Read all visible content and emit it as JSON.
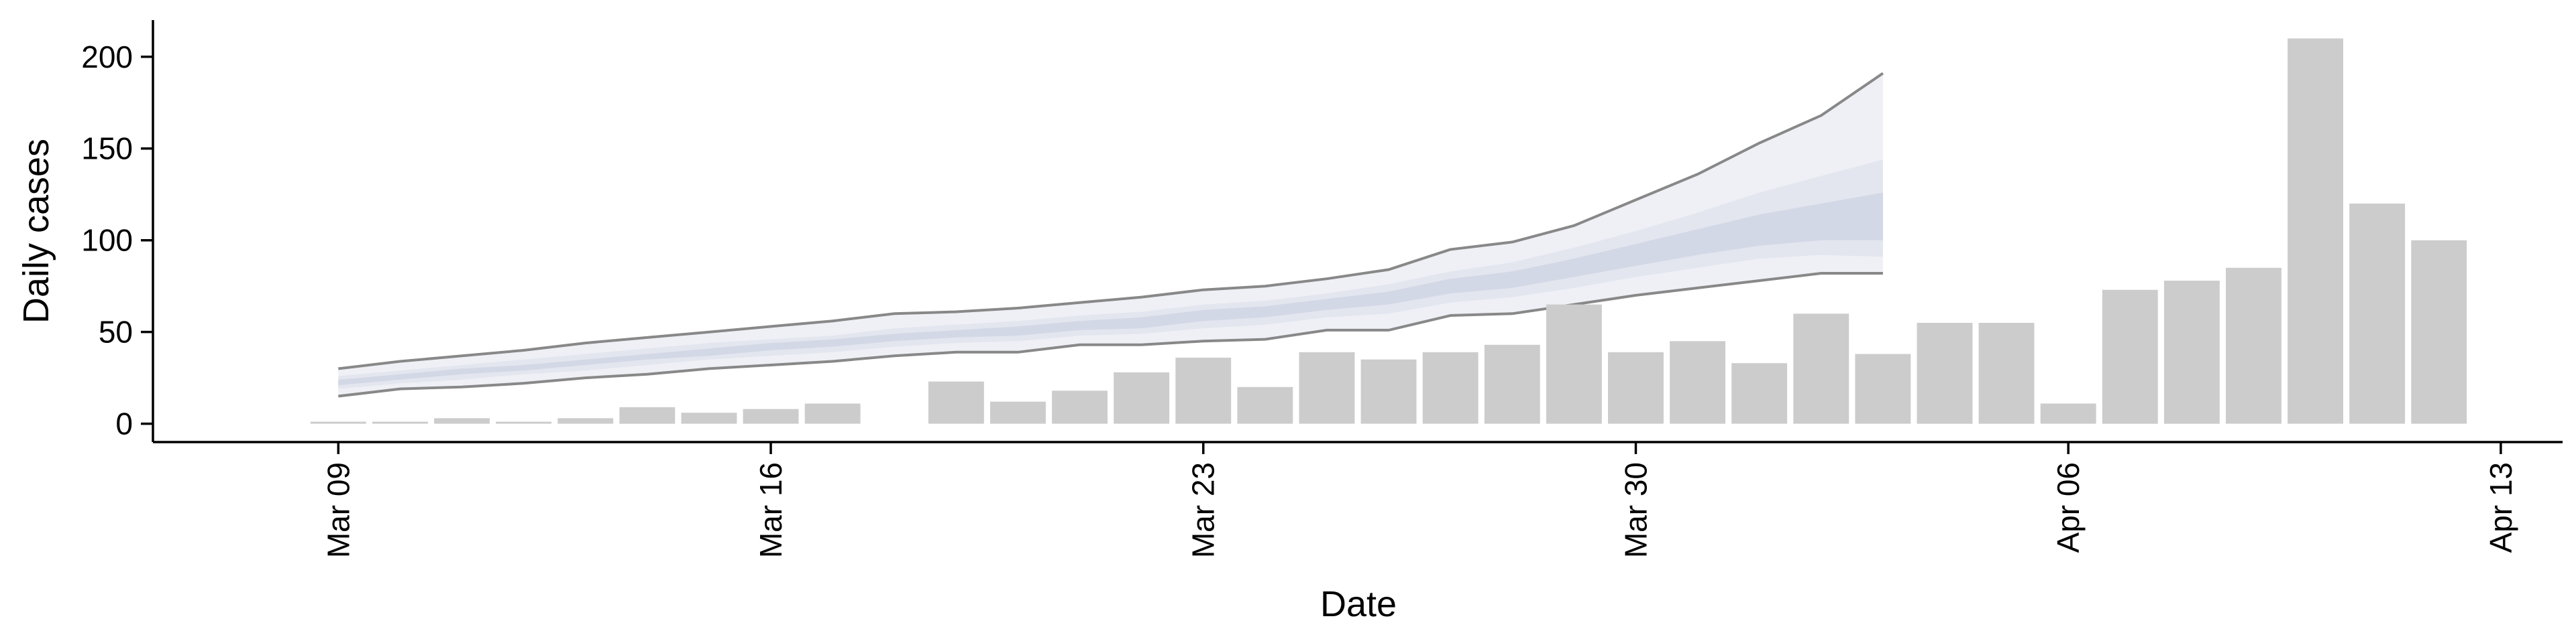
{
  "chart_data": {
    "type": "bar",
    "xlabel": "Date",
    "ylabel": "Daily cases",
    "ylim": [
      -10,
      220
    ],
    "xlim": [
      "2020-03-06",
      "2020-04-14"
    ],
    "y_ticks": [
      0,
      50,
      100,
      150,
      200
    ],
    "x_ticks": [
      {
        "date": "2020-03-09",
        "label": "Mar 09"
      },
      {
        "date": "2020-03-16",
        "label": "Mar 16"
      },
      {
        "date": "2020-03-23",
        "label": "Mar 23"
      },
      {
        "date": "2020-03-30",
        "label": "Mar 30"
      },
      {
        "date": "2020-04-06",
        "label": "Apr 06"
      },
      {
        "date": "2020-04-13",
        "label": "Apr 13"
      }
    ],
    "bars": {
      "color": "#cccccc",
      "data": [
        {
          "date": "2020-03-09",
          "value": 1
        },
        {
          "date": "2020-03-10",
          "value": 1
        },
        {
          "date": "2020-03-11",
          "value": 3
        },
        {
          "date": "2020-03-12",
          "value": 1
        },
        {
          "date": "2020-03-13",
          "value": 3
        },
        {
          "date": "2020-03-14",
          "value": 9
        },
        {
          "date": "2020-03-15",
          "value": 6
        },
        {
          "date": "2020-03-16",
          "value": 8
        },
        {
          "date": "2020-03-17",
          "value": 11
        },
        {
          "date": "2020-03-18",
          "value": 0
        },
        {
          "date": "2020-03-19",
          "value": 23
        },
        {
          "date": "2020-03-20",
          "value": 12
        },
        {
          "date": "2020-03-21",
          "value": 18
        },
        {
          "date": "2020-03-22",
          "value": 28
        },
        {
          "date": "2020-03-23",
          "value": 36
        },
        {
          "date": "2020-03-24",
          "value": 20
        },
        {
          "date": "2020-03-25",
          "value": 39
        },
        {
          "date": "2020-03-26",
          "value": 35
        },
        {
          "date": "2020-03-27",
          "value": 39
        },
        {
          "date": "2020-03-28",
          "value": 43
        },
        {
          "date": "2020-03-29",
          "value": 65
        },
        {
          "date": "2020-03-30",
          "value": 39
        },
        {
          "date": "2020-03-31",
          "value": 45
        },
        {
          "date": "2020-04-01",
          "value": 33
        },
        {
          "date": "2020-04-02",
          "value": 60
        },
        {
          "date": "2020-04-03",
          "value": 38
        },
        {
          "date": "2020-04-04",
          "value": 55
        },
        {
          "date": "2020-04-05",
          "value": 55
        },
        {
          "date": "2020-04-06",
          "value": 11
        },
        {
          "date": "2020-04-07",
          "value": 73
        },
        {
          "date": "2020-04-08",
          "value": 78
        },
        {
          "date": "2020-04-09",
          "value": 85
        },
        {
          "date": "2020-04-10",
          "value": 210
        },
        {
          "date": "2020-04-11",
          "value": 120
        },
        {
          "date": "2020-04-12",
          "value": 100
        }
      ]
    },
    "bands": {
      "line_color": "#888888",
      "outer_fill": "#eef0f5",
      "middle_fill": "#e3e6ef",
      "inner_fill": "#d3d8e6",
      "dates": [
        "2020-03-09",
        "2020-03-10",
        "2020-03-11",
        "2020-03-12",
        "2020-03-13",
        "2020-03-14",
        "2020-03-15",
        "2020-03-16",
        "2020-03-17",
        "2020-03-18",
        "2020-03-19",
        "2020-03-20",
        "2020-03-21",
        "2020-03-22",
        "2020-03-23",
        "2020-03-24",
        "2020-03-25",
        "2020-03-26",
        "2020-03-27",
        "2020-03-28",
        "2020-03-29",
        "2020-03-30",
        "2020-03-31",
        "2020-04-01",
        "2020-04-02",
        "2020-04-03"
      ],
      "outer_low": [
        15,
        19,
        20,
        22,
        25,
        27,
        30,
        32,
        34,
        37,
        39,
        39,
        43,
        43,
        45,
        46,
        51,
        51,
        59,
        60,
        65,
        70,
        74,
        78,
        82,
        82
      ],
      "outer_high": [
        30,
        34,
        37,
        40,
        44,
        47,
        50,
        53,
        56,
        60,
        61,
        63,
        66,
        69,
        73,
        75,
        79,
        84,
        95,
        99,
        108,
        122,
        136,
        153,
        168,
        191
      ],
      "middle_low": [
        19,
        22,
        24,
        27,
        29,
        32,
        35,
        37,
        39,
        42,
        44,
        45,
        48,
        49,
        52,
        54,
        58,
        60,
        66,
        69,
        74,
        80,
        85,
        90,
        92,
        91
      ],
      "middle_high": [
        26,
        29,
        32,
        35,
        38,
        41,
        44,
        46,
        48,
        52,
        54,
        56,
        59,
        61,
        65,
        67,
        71,
        76,
        83,
        88,
        96,
        105,
        115,
        126,
        135,
        144
      ],
      "inner_low": [
        21,
        24,
        27,
        29,
        32,
        35,
        37,
        40,
        42,
        45,
        47,
        48,
        51,
        52,
        56,
        58,
        62,
        65,
        71,
        74,
        80,
        86,
        92,
        97,
        100,
        100
      ],
      "inner_high": [
        24,
        27,
        30,
        32,
        35,
        38,
        41,
        44,
        46,
        49,
        51,
        53,
        56,
        58,
        62,
        64,
        68,
        72,
        79,
        83,
        90,
        98,
        106,
        114,
        120,
        126
      ]
    }
  }
}
